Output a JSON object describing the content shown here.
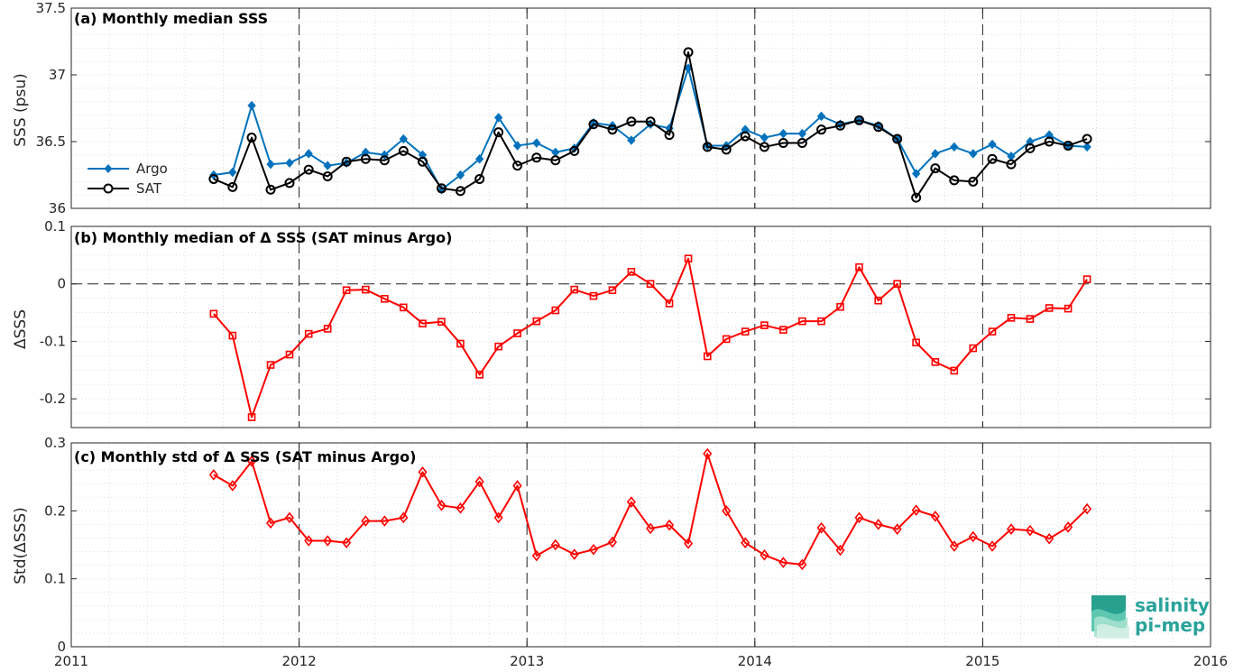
{
  "chart_data": [
    {
      "type": "line",
      "title": "(a) Monthly median SSS",
      "xlabel": "",
      "ylabel": "SSS (psu)",
      "ylim": [
        36,
        37.5
      ],
      "yticks": [
        "36",
        "36.5",
        "37",
        "37.5"
      ],
      "xlim": [
        2011,
        2016
      ],
      "grid": true,
      "legend_position": "left",
      "x": [
        2011.625,
        2011.708,
        2011.792,
        2011.875,
        2011.958,
        2012.042,
        2012.125,
        2012.208,
        2012.292,
        2012.375,
        2012.458,
        2012.542,
        2012.625,
        2012.708,
        2012.792,
        2012.875,
        2012.958,
        2013.042,
        2013.125,
        2013.208,
        2013.292,
        2013.375,
        2013.458,
        2013.542,
        2013.625,
        2013.708,
        2013.792,
        2013.875,
        2013.958,
        2014.042,
        2014.125,
        2014.208,
        2014.292,
        2014.375,
        2014.458,
        2014.542,
        2014.625,
        2014.708,
        2014.792,
        2014.875,
        2014.958,
        2015.042,
        2015.125,
        2015.208,
        2015.292,
        2015.375,
        2015.458
      ],
      "series": [
        {
          "name": "Argo",
          "color": "#0072bd",
          "marker": "diamond-filled",
          "values": [
            36.25,
            36.27,
            36.77,
            36.33,
            36.34,
            36.41,
            36.32,
            36.34,
            36.42,
            36.4,
            36.52,
            36.4,
            36.14,
            36.25,
            36.37,
            36.68,
            36.47,
            36.49,
            36.42,
            36.45,
            36.64,
            36.62,
            36.51,
            36.63,
            36.6,
            37.05,
            36.47,
            36.47,
            36.59,
            36.53,
            36.56,
            36.56,
            36.69,
            36.63,
            36.66,
            36.62,
            36.52,
            36.26,
            36.41,
            36.46,
            36.41,
            36.48,
            36.39,
            36.5,
            36.55,
            36.47,
            36.46
          ]
        },
        {
          "name": "SAT",
          "color": "#000000",
          "marker": "circle-open",
          "values": [
            36.22,
            36.16,
            36.53,
            36.14,
            36.19,
            36.29,
            36.24,
            36.35,
            36.37,
            36.36,
            36.43,
            36.35,
            36.15,
            36.13,
            36.22,
            36.57,
            36.32,
            36.38,
            36.36,
            36.43,
            36.63,
            36.59,
            36.65,
            36.65,
            36.55,
            37.17,
            36.46,
            36.44,
            36.54,
            36.46,
            36.49,
            36.49,
            36.59,
            36.62,
            36.66,
            36.61,
            36.52,
            36.08,
            36.3,
            36.21,
            36.2,
            36.37,
            36.33,
            36.45,
            36.5,
            36.47,
            36.52
          ]
        }
      ]
    },
    {
      "type": "line",
      "title": "(b) Monthly median of Δ SSS (SAT minus Argo)",
      "xlabel": "",
      "ylabel": "ΔSSS",
      "ylim": [
        -0.25,
        0.1
      ],
      "yticks": [
        "-0.2",
        "-0.1",
        "0",
        "0.1"
      ],
      "xlim": [
        2011,
        2016
      ],
      "grid": true,
      "zero_line": true,
      "x": [
        2011.625,
        2011.708,
        2011.792,
        2011.875,
        2011.958,
        2012.042,
        2012.125,
        2012.208,
        2012.292,
        2012.375,
        2012.458,
        2012.542,
        2012.625,
        2012.708,
        2012.792,
        2012.875,
        2012.958,
        2013.042,
        2013.125,
        2013.208,
        2013.292,
        2013.375,
        2013.458,
        2013.542,
        2013.625,
        2013.708,
        2013.792,
        2013.875,
        2013.958,
        2014.042,
        2014.125,
        2014.208,
        2014.292,
        2014.375,
        2014.458,
        2014.542,
        2014.625,
        2014.708,
        2014.792,
        2014.875,
        2014.958,
        2015.042,
        2015.125,
        2015.208,
        2015.292,
        2015.375,
        2015.458
      ],
      "series": [
        {
          "name": "",
          "color": "#ff0000",
          "marker": "square-open",
          "values": [
            -0.052,
            -0.09,
            -0.232,
            -0.141,
            -0.123,
            -0.087,
            -0.078,
            -0.011,
            -0.01,
            -0.026,
            -0.041,
            -0.069,
            -0.066,
            -0.104,
            -0.158,
            -0.109,
            -0.086,
            -0.065,
            -0.046,
            -0.01,
            -0.021,
            -0.011,
            0.021,
            0.0,
            -0.034,
            0.044,
            -0.126,
            -0.096,
            -0.083,
            -0.072,
            -0.08,
            -0.065,
            -0.065,
            -0.04,
            0.029,
            -0.029,
            0.0,
            -0.102,
            -0.136,
            -0.151,
            -0.112,
            -0.083,
            -0.059,
            -0.061,
            -0.042,
            -0.043,
            0.008
          ]
        }
      ]
    },
    {
      "type": "line",
      "title": "(c) Monthly std of Δ SSS (SAT minus Argo)",
      "xlabel": "",
      "ylabel": "Std(ΔSSS)",
      "ylim": [
        0,
        0.3
      ],
      "yticks": [
        "0",
        "0.1",
        "0.2",
        "0.3"
      ],
      "xlim": [
        2011,
        2016
      ],
      "xticks": [
        "2011",
        "2012",
        "2013",
        "2014",
        "2015",
        "2016"
      ],
      "grid": true,
      "x": [
        2011.625,
        2011.708,
        2011.792,
        2011.875,
        2011.958,
        2012.042,
        2012.125,
        2012.208,
        2012.292,
        2012.375,
        2012.458,
        2012.542,
        2012.625,
        2012.708,
        2012.792,
        2012.875,
        2012.958,
        2013.042,
        2013.125,
        2013.208,
        2013.292,
        2013.375,
        2013.458,
        2013.542,
        2013.625,
        2013.708,
        2013.792,
        2013.875,
        2013.958,
        2014.042,
        2014.125,
        2014.208,
        2014.292,
        2014.375,
        2014.458,
        2014.542,
        2014.625,
        2014.708,
        2014.792,
        2014.875,
        2014.958,
        2015.042,
        2015.125,
        2015.208,
        2015.292,
        2015.375,
        2015.458
      ],
      "series": [
        {
          "name": "",
          "color": "#ff0000",
          "marker": "diamond-open",
          "values": [
            0.253,
            0.237,
            0.273,
            0.182,
            0.19,
            0.156,
            0.156,
            0.153,
            0.185,
            0.185,
            0.19,
            0.257,
            0.208,
            0.204,
            0.243,
            0.19,
            0.237,
            0.134,
            0.15,
            0.136,
            0.143,
            0.154,
            0.213,
            0.174,
            0.179,
            0.152,
            0.284,
            0.2,
            0.153,
            0.135,
            0.124,
            0.121,
            0.175,
            0.142,
            0.19,
            0.18,
            0.173,
            0.201,
            0.192,
            0.148,
            0.162,
            0.148,
            0.173,
            0.171,
            0.159,
            0.176,
            0.203
          ]
        }
      ]
    }
  ],
  "logo": {
    "line1": "salinity",
    "line2": "pi-mep"
  }
}
